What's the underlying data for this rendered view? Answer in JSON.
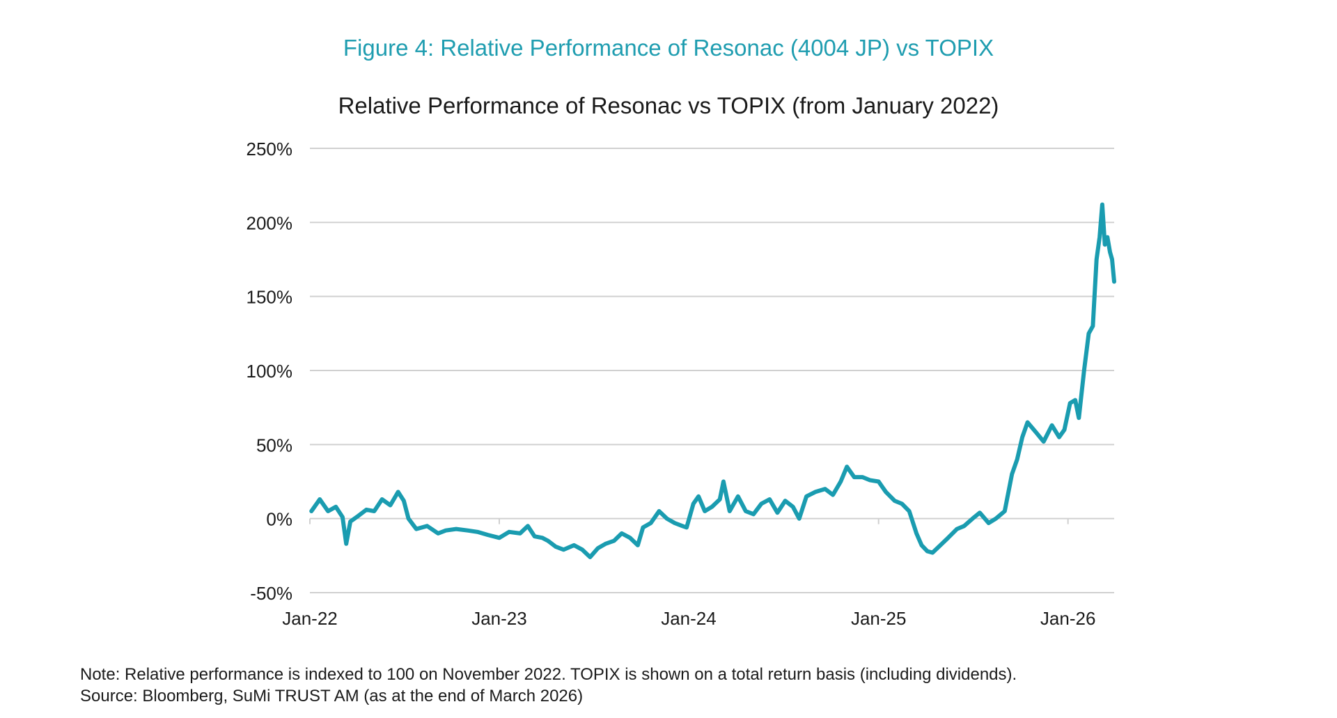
{
  "figure_title": "Figure 4:  Relative Performance of Resonac (4004 JP) vs TOPIX",
  "note": "Note: Relative performance is indexed to 100 on November 2022. TOPIX is shown on a total return basis (including dividends).",
  "source": "Source: Bloomberg, SuMi TRUST AM (as at the end of March 2026)",
  "colors": {
    "title": "#1f9db0",
    "line": "#1a9cb0",
    "grid": "#d0d0d0"
  },
  "chart_data": {
    "type": "line",
    "title": "Relative Performance of Resonac vs TOPIX (from January 2022)",
    "xlabel": "",
    "ylabel": "",
    "ylim": [
      -50,
      250
    ],
    "yticks": [
      -50,
      0,
      50,
      100,
      150,
      200,
      250
    ],
    "ytick_labels": [
      "-50%",
      "0%",
      "50%",
      "100%",
      "150%",
      "200%",
      "250%"
    ],
    "xticks": [
      "2022-01-01",
      "2023-01-01",
      "2024-01-01",
      "2025-01-01",
      "2026-01-01"
    ],
    "xtick_labels": [
      "Jan-22",
      "Jan-23",
      "Jan-24",
      "Jan-25",
      "Jan-26"
    ],
    "xlim": [
      "2022-01-01",
      "2026-03-31"
    ],
    "grid": "horizontal",
    "series": [
      {
        "points": [
          [
            "2022-01-04",
            5
          ],
          [
            "2022-01-20",
            13
          ],
          [
            "2022-02-05",
            5
          ],
          [
            "2022-02-20",
            8
          ],
          [
            "2022-03-05",
            1
          ],
          [
            "2022-03-12",
            -17
          ],
          [
            "2022-03-20",
            -2
          ],
          [
            "2022-04-05",
            2
          ],
          [
            "2022-04-20",
            6
          ],
          [
            "2022-05-05",
            5
          ],
          [
            "2022-05-20",
            13
          ],
          [
            "2022-06-05",
            9
          ],
          [
            "2022-06-20",
            18
          ],
          [
            "2022-07-01",
            12
          ],
          [
            "2022-07-10",
            0
          ],
          [
            "2022-07-25",
            -7
          ],
          [
            "2022-08-15",
            -5
          ],
          [
            "2022-09-05",
            -10
          ],
          [
            "2022-09-20",
            -8
          ],
          [
            "2022-10-10",
            -7
          ],
          [
            "2022-11-01",
            -8
          ],
          [
            "2022-11-20",
            -9
          ],
          [
            "2022-12-10",
            -11
          ],
          [
            "2023-01-01",
            -13
          ],
          [
            "2023-01-20",
            -9
          ],
          [
            "2023-02-10",
            -10
          ],
          [
            "2023-02-25",
            -5
          ],
          [
            "2023-03-10",
            -12
          ],
          [
            "2023-03-25",
            -13
          ],
          [
            "2023-04-05",
            -15
          ],
          [
            "2023-04-20",
            -19
          ],
          [
            "2023-05-05",
            -21
          ],
          [
            "2023-05-25",
            -18
          ],
          [
            "2023-06-10",
            -21
          ],
          [
            "2023-06-25",
            -26
          ],
          [
            "2023-07-10",
            -20
          ],
          [
            "2023-07-25",
            -17
          ],
          [
            "2023-08-10",
            -15
          ],
          [
            "2023-08-25",
            -10
          ],
          [
            "2023-09-10",
            -13
          ],
          [
            "2023-09-25",
            -18
          ],
          [
            "2023-10-05",
            -6
          ],
          [
            "2023-10-20",
            -3
          ],
          [
            "2023-11-05",
            5
          ],
          [
            "2023-11-20",
            0
          ],
          [
            "2023-12-05",
            -3
          ],
          [
            "2023-12-20",
            -5
          ],
          [
            "2023-12-28",
            -6
          ],
          [
            "2024-01-10",
            10
          ],
          [
            "2024-01-20",
            15
          ],
          [
            "2024-02-01",
            5
          ],
          [
            "2024-02-15",
            8
          ],
          [
            "2024-03-01",
            13
          ],
          [
            "2024-03-08",
            25
          ],
          [
            "2024-03-20",
            5
          ],
          [
            "2024-04-05",
            15
          ],
          [
            "2024-04-20",
            5
          ],
          [
            "2024-05-05",
            3
          ],
          [
            "2024-05-20",
            10
          ],
          [
            "2024-06-05",
            13
          ],
          [
            "2024-06-20",
            4
          ],
          [
            "2024-07-05",
            12
          ],
          [
            "2024-07-20",
            8
          ],
          [
            "2024-08-01",
            0
          ],
          [
            "2024-08-15",
            15
          ],
          [
            "2024-09-01",
            18
          ],
          [
            "2024-09-20",
            20
          ],
          [
            "2024-10-05",
            16
          ],
          [
            "2024-10-20",
            25
          ],
          [
            "2024-11-01",
            35
          ],
          [
            "2024-11-15",
            28
          ],
          [
            "2024-12-01",
            28
          ],
          [
            "2024-12-15",
            26
          ],
          [
            "2025-01-01",
            25
          ],
          [
            "2025-01-15",
            18
          ],
          [
            "2025-02-01",
            12
          ],
          [
            "2025-02-15",
            10
          ],
          [
            "2025-03-01",
            5
          ],
          [
            "2025-03-15",
            -10
          ],
          [
            "2025-03-25",
            -18
          ],
          [
            "2025-04-05",
            -22
          ],
          [
            "2025-04-15",
            -23
          ],
          [
            "2025-04-30",
            -18
          ],
          [
            "2025-05-15",
            -13
          ],
          [
            "2025-06-01",
            -7
          ],
          [
            "2025-06-15",
            -5
          ],
          [
            "2025-07-01",
            0
          ],
          [
            "2025-07-15",
            4
          ],
          [
            "2025-08-01",
            -3
          ],
          [
            "2025-08-15",
            0
          ],
          [
            "2025-09-01",
            5
          ],
          [
            "2025-09-15",
            30
          ],
          [
            "2025-09-25",
            40
          ],
          [
            "2025-10-05",
            55
          ],
          [
            "2025-10-15",
            65
          ],
          [
            "2025-11-01",
            58
          ],
          [
            "2025-11-15",
            52
          ],
          [
            "2025-12-01",
            63
          ],
          [
            "2025-12-15",
            55
          ],
          [
            "2025-12-25",
            60
          ],
          [
            "2026-01-05",
            78
          ],
          [
            "2026-01-15",
            80
          ],
          [
            "2026-01-22",
            68
          ],
          [
            "2026-02-01",
            100
          ],
          [
            "2026-02-10",
            125
          ],
          [
            "2026-02-18",
            130
          ],
          [
            "2026-02-25",
            175
          ],
          [
            "2026-03-03",
            190
          ],
          [
            "2026-03-08",
            212
          ],
          [
            "2026-03-13",
            185
          ],
          [
            "2026-03-18",
            190
          ],
          [
            "2026-03-23",
            180
          ],
          [
            "2026-03-27",
            175
          ],
          [
            "2026-03-31",
            160
          ]
        ]
      }
    ]
  }
}
